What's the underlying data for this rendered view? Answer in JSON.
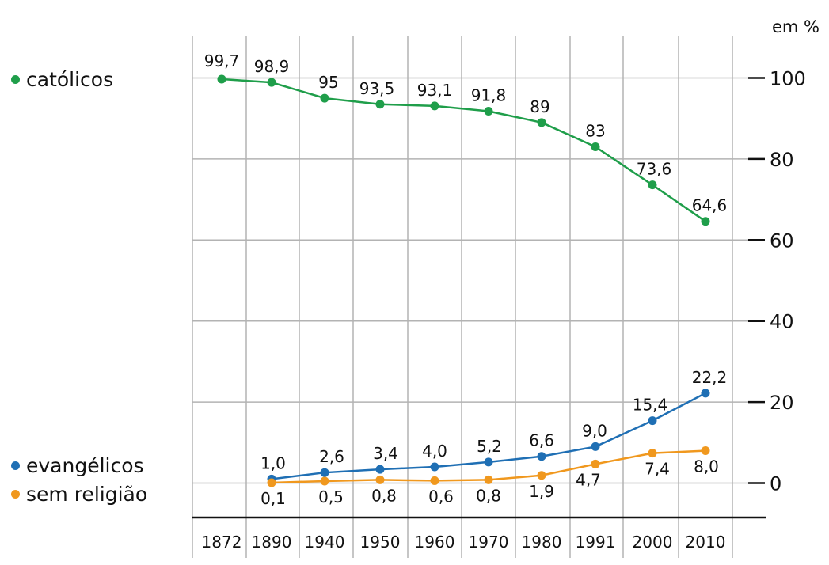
{
  "chart_data": {
    "type": "line",
    "categories": [
      "1872",
      "1890",
      "1940",
      "1950",
      "1960",
      "1970",
      "1980",
      "1991",
      "2000",
      "2010"
    ],
    "unit_label": "em %",
    "yticks": [
      0,
      20,
      40,
      60,
      80,
      100
    ],
    "ylim": [
      -8,
      106
    ],
    "grid": true,
    "legend_placement": "left",
    "series": [
      {
        "name": "católicos",
        "color": "#1f9e4a",
        "values": [
          99.7,
          98.9,
          95,
          93.5,
          93.1,
          91.8,
          89,
          83,
          73.6,
          64.6
        ],
        "labels": [
          "99,7",
          "98,9",
          "95",
          "93,5",
          "93,1",
          "91,8",
          "89",
          "83",
          "73,6",
          "64,6"
        ]
      },
      {
        "name": "evangélicos",
        "color": "#1f6fb4",
        "values": [
          null,
          1.0,
          2.6,
          3.4,
          4.0,
          5.2,
          6.6,
          9.0,
          15.4,
          22.2
        ],
        "labels": [
          null,
          "1,0",
          "2,6",
          "3,4",
          "4,0",
          "5,2",
          "6,6",
          "9,0",
          "15,4",
          "22,2"
        ]
      },
      {
        "name": "sem religião",
        "color": "#f0981e",
        "values": [
          null,
          0.1,
          0.5,
          0.8,
          0.6,
          0.8,
          1.9,
          4.7,
          7.4,
          8.0
        ],
        "labels": [
          null,
          "0,1",
          "0,5",
          "0,8",
          "0,6",
          "0,8",
          "1,9",
          "4,7",
          "7,4",
          "8,0"
        ]
      }
    ]
  }
}
